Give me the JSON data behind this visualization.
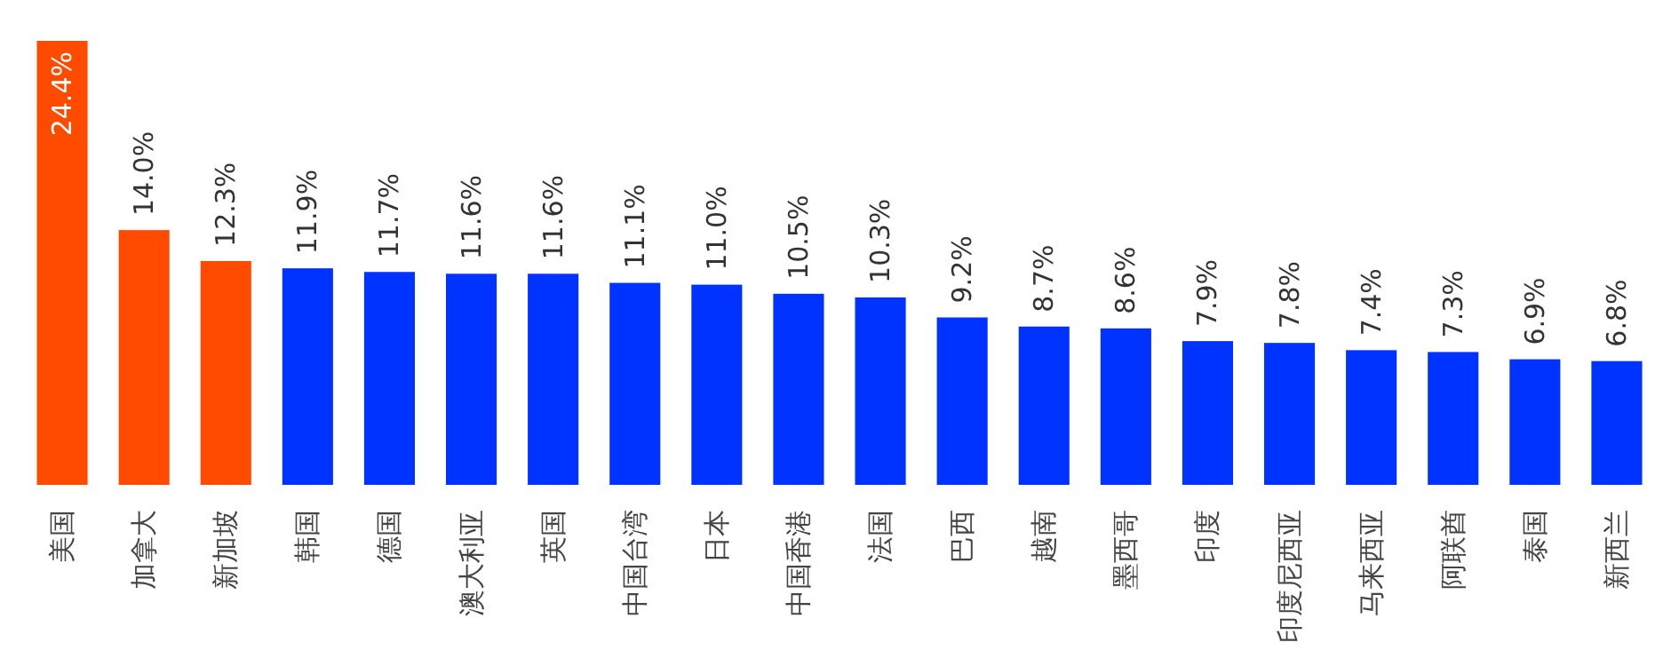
{
  "chart_data": {
    "type": "bar",
    "categories": [
      "美国",
      "加拿大",
      "新加坡",
      "韩国",
      "德国",
      "澳大利亚",
      "英国",
      "中国台湾",
      "日本",
      "中国香港",
      "法国",
      "巴西",
      "越南",
      "墨西哥",
      "印度",
      "印度尼西亚",
      "马来西亚",
      "阿联酋",
      "泰国",
      "新西兰"
    ],
    "values": [
      24.4,
      14.0,
      12.3,
      11.9,
      11.7,
      11.6,
      11.6,
      11.1,
      11.0,
      10.5,
      10.3,
      9.2,
      8.7,
      8.6,
      7.9,
      7.8,
      7.4,
      7.3,
      6.9,
      6.8
    ],
    "value_labels": [
      "24.4%",
      "14.0%",
      "12.3%",
      "11.9%",
      "11.7%",
      "11.6%",
      "11.6%",
      "11.1%",
      "11.0%",
      "10.5%",
      "10.3%",
      "9.2%",
      "8.7%",
      "8.6%",
      "7.9%",
      "7.8%",
      "7.4%",
      "7.3%",
      "6.9%",
      "6.8%"
    ],
    "data_labels": false,
    "colors": [
      "#ff4b00",
      "#ff4b00",
      "#ff4b00",
      "#0033ff",
      "#0033ff",
      "#0033ff",
      "#0033ff",
      "#0033ff",
      "#0033ff",
      "#0033ff",
      "#0033ff",
      "#0033ff",
      "#0033ff",
      "#0033ff",
      "#0033ff",
      "#0033ff",
      "#0033ff",
      "#0033ff",
      "#0033ff",
      "#0033ff"
    ],
    "legend": false
  }
}
